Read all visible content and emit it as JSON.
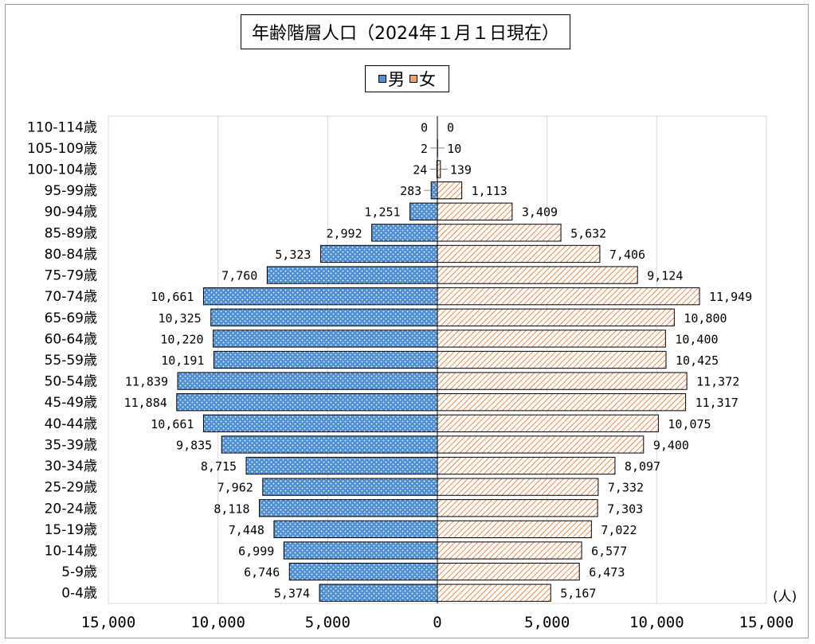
{
  "title": "年齢階層人口（2024年１月１日現在）",
  "unit_label": "(人)",
  "colors": {
    "male": "#4f8fd6",
    "female": "#f2a06a",
    "grid": "#d9d9d9"
  },
  "chart_data": {
    "type": "bar",
    "orientation": "horizontal",
    "title": "年齢階層人口（2024年１月１日現在）",
    "xlabel": "(人)",
    "ylabel": "",
    "xlim": [
      -15000,
      15000
    ],
    "x_ticks": [
      -15000,
      -10000,
      -5000,
      0,
      5000,
      10000,
      15000
    ],
    "x_tick_labels": [
      "15,000",
      "10,000",
      "5,000",
      "0",
      "5,000",
      "10,000",
      "15,000"
    ],
    "grid": true,
    "legend": "top-center",
    "categories": [
      "110-114歳",
      "105-109歳",
      "100-104歳",
      "95-99歳",
      "90-94歳",
      "85-89歳",
      "80-84歳",
      "75-79歳",
      "70-74歳",
      "65-69歳",
      "60-64歳",
      "55-59歳",
      "50-54歳",
      "45-49歳",
      "40-44歳",
      "35-39歳",
      "30-34歳",
      "25-29歳",
      "20-24歳",
      "15-19歳",
      "10-14歳",
      "5-9歳",
      "0-4歳"
    ],
    "series": [
      {
        "name": "男",
        "values": [
          0,
          2,
          24,
          283,
          1251,
          2992,
          5323,
          7760,
          10661,
          10325,
          10220,
          10191,
          11839,
          11884,
          10661,
          9835,
          8715,
          7962,
          8118,
          7448,
          6999,
          6746,
          5374
        ],
        "labels": [
          "0",
          "2",
          "24",
          "283",
          "1,251",
          "2,992",
          "5,323",
          "7,760",
          "10,661",
          "10,325",
          "10,220",
          "10,191",
          "11,839",
          "11,884",
          "10,661",
          "9,835",
          "8,715",
          "7,962",
          "8,118",
          "7,448",
          "6,999",
          "6,746",
          "5,374"
        ]
      },
      {
        "name": "女",
        "values": [
          0,
          10,
          139,
          1113,
          3409,
          5632,
          7406,
          9124,
          11949,
          10800,
          10400,
          10425,
          11372,
          11317,
          10075,
          9400,
          8097,
          7332,
          7303,
          7022,
          6577,
          6473,
          5167
        ],
        "labels": [
          "0",
          "10",
          "139",
          "1,113",
          "3,409",
          "5,632",
          "7,406",
          "9,124",
          "11,949",
          "10,800",
          "10,400",
          "10,425",
          "11,372",
          "11,317",
          "10,075",
          "9,400",
          "8,097",
          "7,332",
          "7,303",
          "7,022",
          "6,577",
          "6,473",
          "5,167"
        ]
      }
    ]
  }
}
